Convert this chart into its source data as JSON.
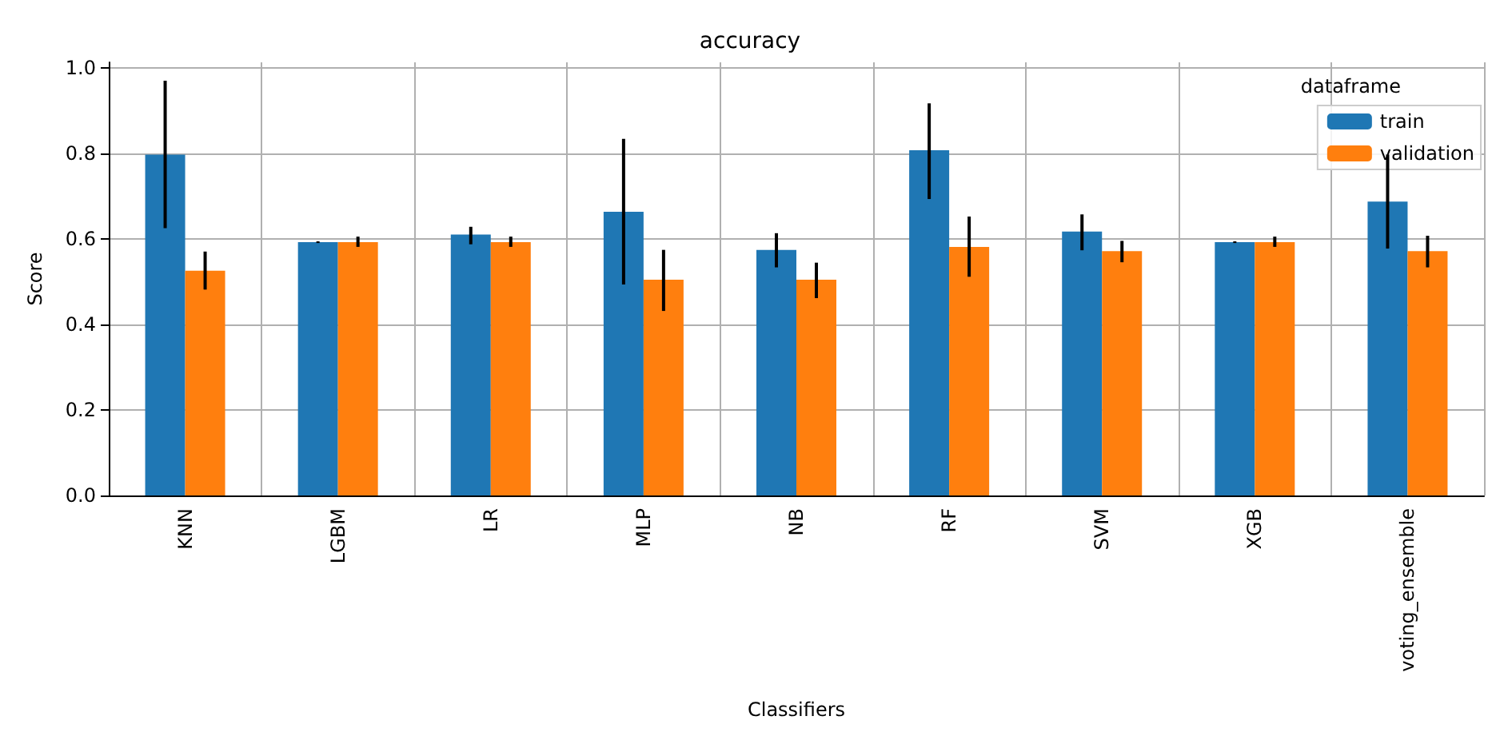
{
  "chart_data": {
    "type": "bar",
    "title": "accuracy",
    "xlabel": "Classifiers",
    "ylabel": "Score",
    "legend_title": "dataframe",
    "legend": "top right",
    "grid": true,
    "categories": [
      "KNN",
      "LGBM",
      "LR",
      "MLP",
      "NB",
      "RF",
      "SVM",
      "XGB",
      "voting_ensemble"
    ],
    "ylim": [
      0,
      1.014
    ],
    "yticks": [
      {
        "value": 0,
        "label": "0.0"
      },
      0.2,
      0.4,
      0.6,
      0.8,
      {
        "value": 1,
        "label": "1.0"
      }
    ],
    "series": [
      {
        "name": "train",
        "color": "#1f77b4",
        "values": [
          0.798,
          0.593,
          0.611,
          0.664,
          0.575,
          0.808,
          0.618,
          0.593,
          0.688
        ],
        "errors": [
          [
            0.626,
            0.971
          ],
          [
            0.591,
            0.595
          ],
          [
            0.588,
            0.629
          ],
          [
            0.494,
            0.835
          ],
          [
            0.534,
            0.614
          ],
          [
            0.694,
            0.918
          ],
          [
            0.574,
            0.658
          ],
          [
            0.591,
            0.595
          ],
          [
            0.578,
            0.798
          ]
        ]
      },
      {
        "name": "validation",
        "color": "#ff7f0e",
        "values": [
          0.526,
          0.593,
          0.593,
          0.505,
          0.505,
          0.582,
          0.572,
          0.593,
          0.572
        ],
        "errors": [
          [
            0.482,
            0.571
          ],
          [
            0.582,
            0.606
          ],
          [
            0.582,
            0.606
          ],
          [
            0.432,
            0.575
          ],
          [
            0.462,
            0.545
          ],
          [
            0.512,
            0.653
          ],
          [
            0.546,
            0.596
          ],
          [
            0.582,
            0.606
          ],
          [
            0.534,
            0.608
          ]
        ]
      }
    ]
  }
}
